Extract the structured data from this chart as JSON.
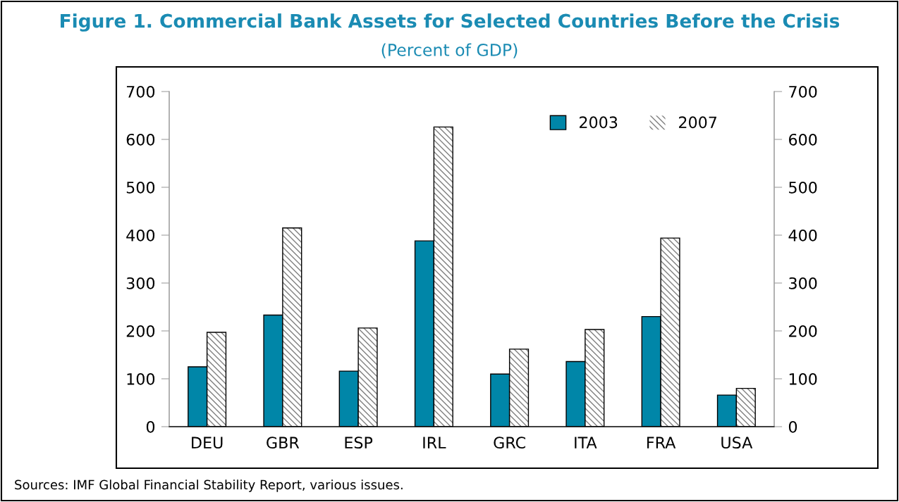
{
  "chart_data": {
    "type": "bar",
    "title": "Figure 1. Commercial Bank Assets for Selected Countries Before the Crisis",
    "subtitle": "(Percent of GDP)",
    "categories": [
      "DEU",
      "GBR",
      "ESP",
      "IRL",
      "GRC",
      "ITA",
      "FRA",
      "USA"
    ],
    "series": [
      {
        "name": "2003",
        "color": "#0086a8",
        "values": [
          125,
          233,
          116,
          388,
          110,
          136,
          230,
          66
        ]
      },
      {
        "name": "2007",
        "color": "#808080",
        "values": [
          197,
          415,
          206,
          626,
          162,
          203,
          394,
          80
        ]
      }
    ],
    "ylim": [
      0,
      700
    ],
    "yticks": [
      0,
      100,
      200,
      300,
      400,
      500,
      600,
      700
    ],
    "y2lim": [
      0,
      700
    ],
    "y2ticks": [
      0,
      100,
      200,
      300,
      400,
      500,
      600,
      700
    ],
    "legend": "top right",
    "grid": false,
    "annotations": [
      "Sources: IMF Global Financial Stability Report, various issues."
    ]
  }
}
